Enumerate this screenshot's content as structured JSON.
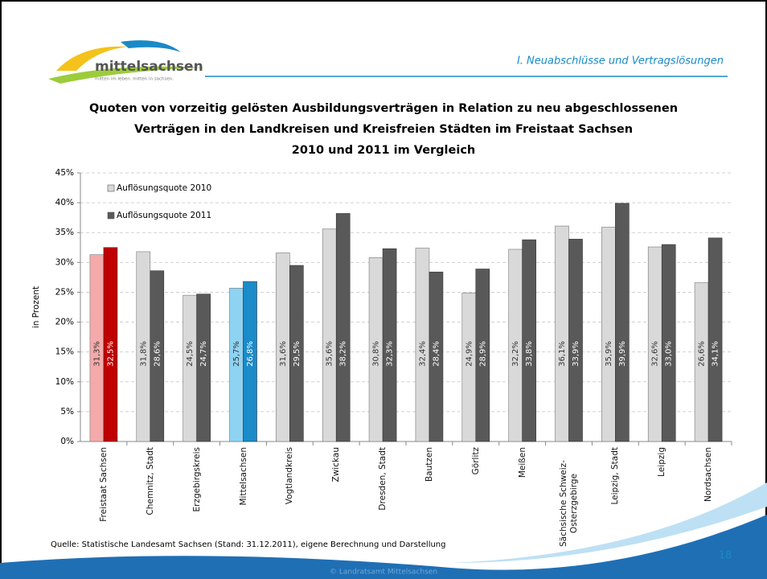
{
  "header": {
    "logo": "mittelsachsen",
    "logo_tagline": "mitten im leben. mitten in sachsen.",
    "section": "I. Neuabschlüsse und Vertragslösungen"
  },
  "chart_data": {
    "type": "bar",
    "title": [
      "Quoten von vorzeitig gelösten Ausbildungsverträgen in Relation zu neu abgeschlossenen",
      "Verträgen in den Landkreisen und Kreisfreien Städten im Freistaat Sachsen",
      "2010 und 2011 im Vergleich"
    ],
    "y_label": "in Prozent",
    "categories": [
      "Freistaat Sachsen",
      "Chemnitz, Stadt",
      "Erzgebirgskreis",
      "Mittelsachsen",
      "Vogtlandkreis",
      "Zwickau",
      "Dresden, Stadt",
      "Bautzen",
      "Görlitz",
      "Meißen",
      "Sächsische Schweiz-Osterzgebirge",
      "Leipzig, Stadt",
      "Leipzig",
      "Nordsachsen"
    ],
    "series": [
      {
        "name": "Auflösungsquote 2010",
        "color": "#d9d9d9",
        "label_color": "#333333",
        "colors": [
          "#f4aaaa",
          "#d9d9d9",
          "#d9d9d9",
          "#8ed3f2",
          "#d9d9d9",
          "#d9d9d9",
          "#d9d9d9",
          "#d9d9d9",
          "#d9d9d9",
          "#d9d9d9",
          "#d9d9d9",
          "#d9d9d9",
          "#d9d9d9",
          "#d9d9d9"
        ],
        "values": [
          31.3,
          31.8,
          24.5,
          25.7,
          31.6,
          35.6,
          30.8,
          32.4,
          24.9,
          32.2,
          36.1,
          35.9,
          32.6,
          26.6
        ],
        "value_labels": [
          "31,3%",
          "31,8%",
          "24,5%",
          "25,7%",
          "31,6%",
          "35,6%",
          "30,8%",
          "32,4%",
          "24,9%",
          "32,2%",
          "36,1%",
          "35,9%",
          "32,6%",
          "26,6%"
        ]
      },
      {
        "name": "Auflösungsquote 2011",
        "color": "#595959",
        "label_color": "#ffffff",
        "colors": [
          "#c00000",
          "#595959",
          "#595959",
          "#1b8bc9",
          "#595959",
          "#595959",
          "#595959",
          "#595959",
          "#595959",
          "#595959",
          "#595959",
          "#595959",
          "#595959",
          "#595959"
        ],
        "values": [
          32.5,
          28.6,
          24.7,
          26.8,
          29.5,
          38.2,
          32.3,
          28.4,
          28.9,
          33.8,
          33.9,
          39.9,
          33.0,
          34.1
        ],
        "value_labels": [
          "32,5%",
          "28,6%",
          "24,7%",
          "26,8%",
          "29,5%",
          "38,2%",
          "32,3%",
          "28,4%",
          "28,9%",
          "33,8%",
          "33,9%",
          "39,9%",
          "33,0%",
          "34,1%"
        ]
      }
    ],
    "ylim": [
      0,
      45
    ],
    "yticks": [
      {
        "value": 0,
        "label": "0%"
      },
      {
        "value": 5,
        "label": "5%"
      },
      {
        "value": 10,
        "label": "10%"
      },
      {
        "value": 15,
        "label": "15%"
      },
      {
        "value": 20,
        "label": "20%"
      },
      {
        "value": 25,
        "label": "25%"
      },
      {
        "value": 30,
        "label": "30%"
      },
      {
        "value": 35,
        "label": "35%"
      },
      {
        "value": 40,
        "label": "40%"
      },
      {
        "value": 45,
        "label": "45%"
      }
    ],
    "grid": true,
    "legend": "upper left"
  },
  "footer": {
    "source": "Quelle: Statistische Landesamt Sachsen (Stand: 31.12.2011), eigene Berechnung und Darstellung",
    "page": "18",
    "copyright": "© Landratsamt Mittelsachsen"
  }
}
